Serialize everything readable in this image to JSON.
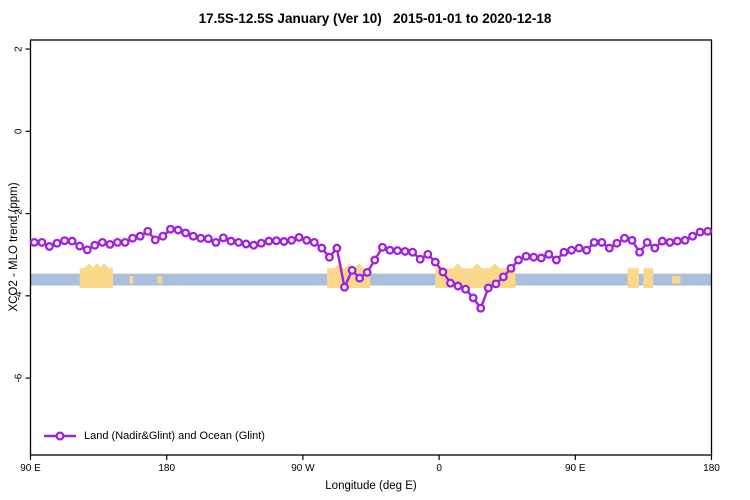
{
  "title": "17.5S-12.5S January (Ver 10)   2015-01-01 to 2020-12-18",
  "chart_data": {
    "type": "line",
    "title": "17.5S-12.5S January (Ver 10)   2015-01-01 to 2020-12-18",
    "xlabel": "Longitude (deg E)",
    "ylabel": "XCO2 - MLO trend (ppm)",
    "xlim": [
      90,
      540
    ],
    "ylim": [
      -7.87,
      2.22
    ],
    "grid": false,
    "x_ticks": [
      {
        "value": 90,
        "label": "90 E"
      },
      {
        "value": 180,
        "label": "180"
      },
      {
        "value": 270,
        "label": "90 W"
      },
      {
        "value": 360,
        "label": "0"
      },
      {
        "value": 450,
        "label": "90 E"
      },
      {
        "value": 540,
        "label": "180"
      }
    ],
    "y_ticks": [
      {
        "value": 2,
        "label": "2"
      },
      {
        "value": 0,
        "label": "0"
      },
      {
        "value": -2,
        "label": "-2"
      },
      {
        "value": -4,
        "label": "-4"
      },
      {
        "value": -6,
        "label": "-6"
      }
    ],
    "legend": {
      "position": "bottom-left",
      "label": "Land (Nadir&Glint) and Ocean (Glint)"
    },
    "colors": {
      "series": "#A020E0",
      "ocean_band": "#A9BFDC",
      "land_band": "#FAD88A",
      "axis": "#000000"
    },
    "reference_band": {
      "x_from": 90,
      "x_to": 540,
      "y_top": -3.46,
      "y_bottom": -3.75,
      "color": "#A9BFDC"
    },
    "land_patches": [
      {
        "x_from": 122.5,
        "x_to": 144.5,
        "minor": false
      },
      {
        "x_from": 155.5,
        "x_to": 158.0,
        "minor": true
      },
      {
        "x_from": 174.0,
        "x_to": 177.0,
        "minor": true
      },
      {
        "x_from": 286.0,
        "x_to": 314.5,
        "minor": false
      },
      {
        "x_from": 357.5,
        "x_to": 410.5,
        "minor": false
      },
      {
        "x_from": 484.5,
        "x_to": 492.0,
        "minor": false
      },
      {
        "x_from": 495.0,
        "x_to": 501.5,
        "minor": false
      },
      {
        "x_from": 514.0,
        "x_to": 519.5,
        "minor": true
      }
    ],
    "series": [
      {
        "name": "Land (Nadir&Glint) and Ocean (Glint)",
        "color": "#A020E0",
        "marker": "open-circle",
        "x": [
          92.5,
          97.5,
          102.5,
          107.5,
          112.5,
          117.5,
          122.5,
          127.5,
          132.5,
          137.5,
          142.5,
          147.5,
          152.5,
          157.5,
          162.5,
          167.5,
          172.5,
          177.5,
          182.5,
          187.5,
          192.5,
          197.5,
          202.5,
          207.5,
          212.5,
          217.5,
          222.5,
          227.5,
          232.5,
          237.5,
          242.5,
          247.5,
          252.5,
          257.5,
          262.5,
          267.5,
          272.5,
          277.5,
          282.5,
          287.5,
          292.5,
          297.5,
          302.5,
          307.5,
          312.5,
          317.5,
          322.5,
          327.5,
          332.5,
          337.5,
          342.5,
          347.5,
          352.5,
          357.5,
          362.5,
          367.5,
          372.5,
          377.5,
          382.5,
          387.5,
          392.5,
          397.5,
          402.5,
          407.5,
          412.5,
          417.5,
          422.5,
          427.5,
          432.5,
          437.5,
          442.5,
          447.5,
          452.5,
          457.5,
          462.5,
          467.5,
          472.5,
          477.5,
          482.5,
          487.5,
          492.5,
          497.5,
          502.5,
          507.5,
          512.5,
          517.5,
          522.5,
          527.5,
          532.5,
          537.5
        ],
        "y": [
          -2.7,
          -2.7,
          -2.8,
          -2.72,
          -2.66,
          -2.67,
          -2.79,
          -2.88,
          -2.77,
          -2.7,
          -2.75,
          -2.7,
          -2.7,
          -2.6,
          -2.55,
          -2.43,
          -2.64,
          -2.55,
          -2.38,
          -2.4,
          -2.47,
          -2.55,
          -2.6,
          -2.61,
          -2.7,
          -2.59,
          -2.67,
          -2.7,
          -2.74,
          -2.77,
          -2.72,
          -2.67,
          -2.66,
          -2.68,
          -2.65,
          -2.58,
          -2.65,
          -2.7,
          -2.84,
          -3.06,
          -2.84,
          -3.79,
          -3.38,
          -3.57,
          -3.43,
          -3.13,
          -2.82,
          -2.89,
          -2.9,
          -2.92,
          -2.94,
          -3.11,
          -2.99,
          -3.18,
          -3.42,
          -3.69,
          -3.76,
          -3.84,
          -4.05,
          -4.3,
          -3.81,
          -3.71,
          -3.54,
          -3.33,
          -3.13,
          -3.04,
          -3.06,
          -3.08,
          -2.99,
          -3.13,
          -2.94,
          -2.89,
          -2.84,
          -2.89,
          -2.7,
          -2.7,
          -2.84,
          -2.72,
          -2.6,
          -2.65,
          -2.94,
          -2.7,
          -2.84,
          -2.67,
          -2.7,
          -2.67,
          -2.65,
          -2.55,
          -2.45,
          -2.43
        ]
      }
    ]
  }
}
